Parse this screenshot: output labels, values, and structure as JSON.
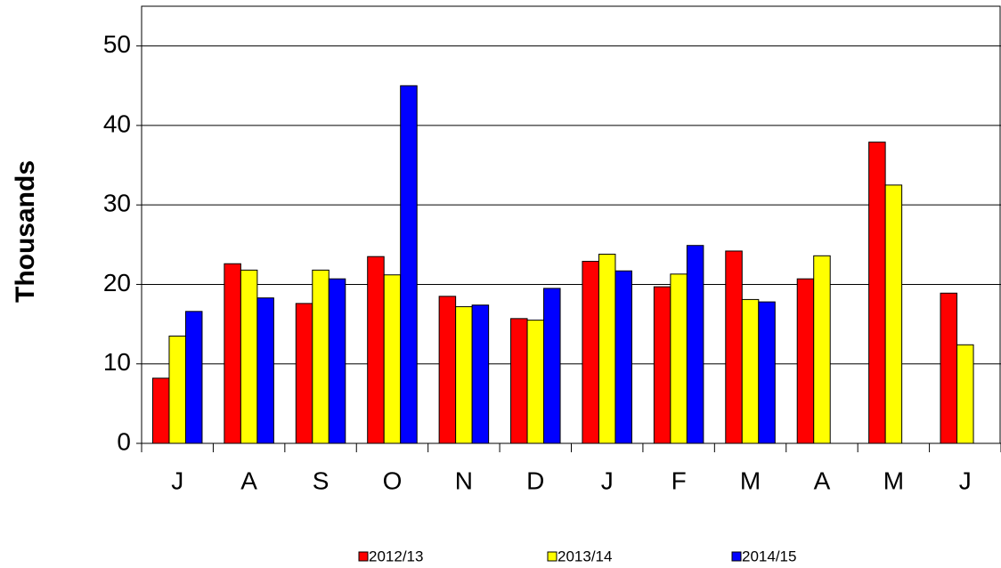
{
  "chart_data": {
    "type": "bar",
    "y_label": "Thousands",
    "categories": [
      "J",
      "A",
      "S",
      "O",
      "N",
      "D",
      "J",
      "F",
      "M",
      "A",
      "M",
      "J"
    ],
    "series": [
      {
        "name": "2012/13",
        "color": "#ff0000",
        "values": [
          8.2,
          22.6,
          17.6,
          23.5,
          18.5,
          15.7,
          22.9,
          19.7,
          24.2,
          20.7,
          37.9,
          18.9
        ]
      },
      {
        "name": "2013/14",
        "color": "#ffff00",
        "values": [
          13.5,
          21.8,
          21.8,
          21.2,
          17.2,
          15.5,
          23.8,
          21.3,
          18.1,
          23.6,
          32.5,
          12.4
        ]
      },
      {
        "name": "2014/15",
        "color": "#0000ff",
        "values": [
          16.6,
          18.3,
          20.7,
          45.0,
          17.4,
          19.5,
          21.7,
          24.9,
          17.8,
          null,
          null,
          null
        ]
      }
    ],
    "ylim": [
      0,
      55
    ],
    "yticks": [
      0,
      10,
      20,
      30,
      40,
      50
    ],
    "grid": true,
    "legend": "bottom"
  }
}
